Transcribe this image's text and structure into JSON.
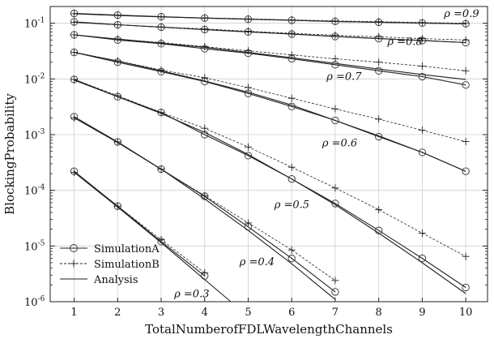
{
  "chart_data": {
    "type": "line",
    "xlabel": "TotalNumberofFDLWavelengthChannels",
    "ylabel": "BlockingProbability",
    "x_ticks": [
      1,
      2,
      3,
      4,
      5,
      6,
      7,
      8,
      9,
      10
    ],
    "xlim": [
      0.45,
      10.5
    ],
    "ylim": [
      1e-06,
      0.2
    ],
    "y_scale": "log",
    "y_ticks": [
      {
        "value": 1e-06,
        "base": "10",
        "exp": "-6"
      },
      {
        "value": 1e-05,
        "base": "10",
        "exp": "-5"
      },
      {
        "value": 0.0001,
        "base": "10",
        "exp": "-4"
      },
      {
        "value": 0.001,
        "base": "10",
        "exp": "-3"
      },
      {
        "value": 0.01,
        "base": "10",
        "exp": "-2"
      },
      {
        "value": 0.1,
        "base": "10",
        "exp": "-1"
      }
    ],
    "grid": true,
    "legend": {
      "placement": "bottom-left",
      "entries": [
        {
          "label": "SimulationA",
          "marker": "circle",
          "style": "solid"
        },
        {
          "label": "SimulationB",
          "marker": "plus",
          "style": "dashed"
        },
        {
          "label": "Analysis",
          "marker": "none",
          "style": "solid"
        }
      ]
    },
    "curves": [
      {
        "rho_label": "ρ =0.9",
        "label_at": {
          "x": 9.5,
          "y": 0.13
        },
        "analysis": {
          "x": [
            1,
            2,
            3,
            4,
            5,
            6,
            7,
            8,
            9,
            10
          ],
          "y": [
            0.148,
            0.138,
            0.13,
            0.124,
            0.118,
            0.113,
            0.108,
            0.104,
            0.101,
            0.098
          ]
        },
        "sim_a": {
          "x": [
            1,
            2,
            3,
            4,
            5,
            6,
            7,
            8,
            9,
            10
          ],
          "y": [
            0.15,
            0.14,
            0.131,
            0.124,
            0.118,
            0.113,
            0.108,
            0.104,
            0.101,
            0.098
          ]
        },
        "sim_b": {
          "x": [
            1,
            2,
            3,
            4,
            5,
            6,
            7,
            8,
            9,
            10
          ],
          "y": [
            0.148,
            0.138,
            0.13,
            0.125,
            0.12,
            0.115,
            0.11,
            0.107,
            0.103,
            0.1
          ]
        }
      },
      {
        "rho_label": "ρ =0.8",
        "label_at": {
          "x": 8.2,
          "y": 0.041
        },
        "analysis": {
          "x": [
            1,
            2,
            3,
            4,
            5,
            6,
            7,
            8,
            9,
            10
          ],
          "y": [
            0.104,
            0.094,
            0.085,
            0.077,
            0.07,
            0.064,
            0.058,
            0.053,
            0.049,
            0.045
          ]
        },
        "sim_a": {
          "x": [
            1,
            2,
            3,
            4,
            5,
            6,
            7,
            8,
            9,
            10
          ],
          "y": [
            0.106,
            0.094,
            0.085,
            0.077,
            0.07,
            0.064,
            0.058,
            0.053,
            0.049,
            0.045
          ]
        },
        "sim_b": {
          "x": [
            1,
            2,
            3,
            4,
            5,
            6,
            7,
            8,
            9,
            10
          ],
          "y": [
            0.104,
            0.094,
            0.086,
            0.079,
            0.072,
            0.066,
            0.061,
            0.057,
            0.053,
            0.05
          ]
        }
      },
      {
        "rho_label": "ρ =0.7",
        "label_at": {
          "x": 6.8,
          "y": 0.0096
        },
        "analysis": {
          "x": [
            1,
            2,
            3,
            4,
            5,
            6,
            7,
            8,
            9,
            10
          ],
          "y": [
            0.062,
            0.052,
            0.044,
            0.037,
            0.03,
            0.024,
            0.019,
            0.015,
            0.012,
            0.0098
          ]
        },
        "sim_a": {
          "x": [
            1,
            2,
            3,
            4,
            5,
            6,
            7,
            8,
            9,
            10
          ],
          "y": [
            0.062,
            0.05,
            0.043,
            0.035,
            0.029,
            0.023,
            0.018,
            0.014,
            0.011,
            0.0078
          ]
        },
        "sim_b": {
          "x": [
            1,
            2,
            3,
            4,
            5,
            6,
            7,
            8,
            9,
            10
          ],
          "y": [
            0.062,
            0.052,
            0.045,
            0.038,
            0.032,
            0.027,
            0.023,
            0.02,
            0.017,
            0.014
          ]
        }
      },
      {
        "rho_label": "ρ =0.6",
        "label_at": {
          "x": 6.7,
          "y": 0.00062
        },
        "analysis": {
          "x": [
            1,
            2,
            3,
            4,
            5,
            6,
            7,
            8,
            9,
            10
          ],
          "y": [
            0.03,
            0.021,
            0.014,
            0.0092,
            0.0058,
            0.0034,
            0.0018,
            0.00095,
            0.00048,
            0.00022
          ]
        },
        "sim_a": {
          "x": [
            1,
            2,
            3,
            4,
            5,
            6,
            7,
            8,
            9,
            10
          ],
          "y": [
            0.03,
            0.02,
            0.0135,
            0.009,
            0.0055,
            0.0032,
            0.0018,
            0.00092,
            0.00048,
            0.00022
          ]
        },
        "sim_b": {
          "x": [
            1,
            2,
            3,
            4,
            5,
            6,
            7,
            8,
            9,
            10
          ],
          "y": [
            0.03,
            0.021,
            0.0145,
            0.0105,
            0.007,
            0.0045,
            0.0029,
            0.0019,
            0.0012,
            0.00075
          ]
        }
      },
      {
        "rho_label": "ρ =0.5",
        "label_at": {
          "x": 5.6,
          "y": 4.8e-05
        },
        "analysis": {
          "x": [
            1,
            2,
            3,
            4,
            5,
            6,
            7,
            8,
            9,
            10
          ],
          "y": [
            0.0095,
            0.0048,
            0.0024,
            0.0011,
            0.00044,
            0.00016,
            5.5e-05,
            1.7e-05,
            5e-06,
            1.4e-06
          ]
        },
        "sim_a": {
          "x": [
            1,
            2,
            3,
            4,
            5,
            6,
            7,
            8,
            9,
            10
          ],
          "y": [
            0.0098,
            0.0048,
            0.0025,
            0.001,
            0.00042,
            0.00016,
            5.8e-05,
            1.9e-05,
            6e-06,
            1.8e-06
          ]
        },
        "sim_b": {
          "x": [
            1,
            2,
            3,
            4,
            5,
            6,
            7,
            8,
            9,
            10
          ],
          "y": [
            0.0098,
            0.005,
            0.0025,
            0.0013,
            0.0006,
            0.00026,
            0.00011,
            4.5e-05,
            1.7e-05,
            6.5e-06
          ]
        }
      },
      {
        "rho_label": "ρ =0.4",
        "label_at": {
          "x": 4.8,
          "y": 4.5e-06
        },
        "analysis": {
          "x": [
            1,
            2,
            3,
            4,
            5,
            6,
            7
          ],
          "y": [
            0.002,
            0.00072,
            0.00024,
            7e-05,
            1.9e-05,
            4.8e-06,
            1.1e-06
          ]
        },
        "sim_a": {
          "x": [
            1,
            2,
            3,
            4,
            5,
            6,
            7
          ],
          "y": [
            0.0021,
            0.00074,
            0.00024,
            7.8e-05,
            2.2e-05,
            6e-06,
            1.5e-06
          ]
        },
        "sim_b": {
          "x": [
            1,
            2,
            3,
            4,
            5,
            6,
            7
          ],
          "y": [
            0.002,
            0.00074,
            0.00024,
            8e-05,
            2.6e-05,
            8.5e-06,
            2.4e-06
          ]
        }
      },
      {
        "rho_label": "ρ =0.3",
        "label_at": {
          "x": 3.3,
          "y": 1.2e-06
        },
        "analysis": {
          "x": [
            1,
            2,
            3,
            4,
            4.6
          ],
          "y": [
            0.00021,
            5e-05,
            1.15e-05,
            2.5e-06,
            1e-06
          ]
        },
        "sim_a": {
          "x": [
            1,
            2,
            3,
            4
          ],
          "y": [
            0.00022,
            5.2e-05,
            1.2e-05,
            2.9e-06
          ]
        },
        "sim_b": {
          "x": [
            1,
            2,
            3,
            4
          ],
          "y": [
            0.00021,
            5.2e-05,
            1.3e-05,
            3.3e-06
          ]
        }
      }
    ]
  }
}
